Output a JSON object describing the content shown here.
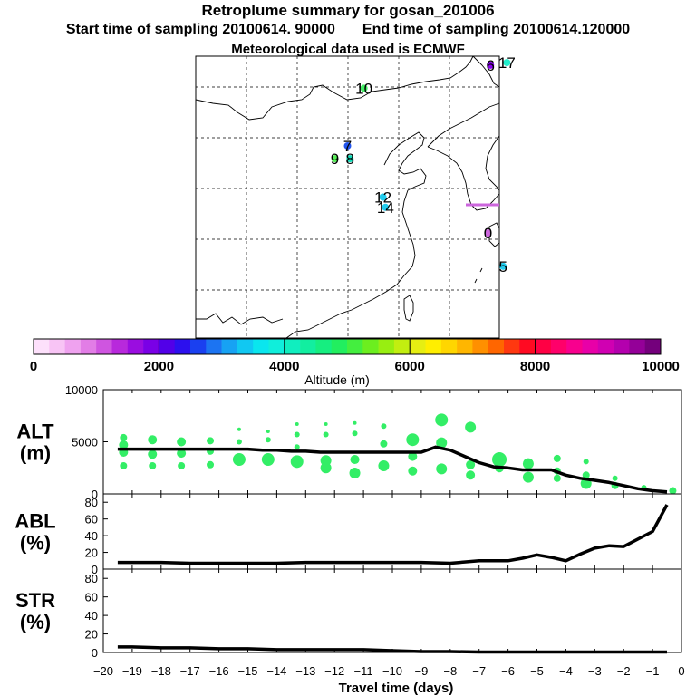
{
  "header": {
    "title": "Retroplume summary for gosan_201006",
    "start_label": "Start time of sampling 20100614. 90000",
    "end_label": "End time of sampling 20100614.120000",
    "met_label": "Meteorological data used is ECMWF"
  },
  "map": {
    "markers": [
      {
        "label": "17",
        "lon": 128.6,
        "lat": 47.5,
        "color": "#22eecc"
      },
      {
        "label": "6",
        "lon": 127.3,
        "lat": 47.3,
        "color": "#8800ee"
      },
      {
        "label": "10",
        "lon": 117.3,
        "lat": 45.5,
        "color": "#44ee66"
      },
      {
        "label": "7",
        "lon": 116.0,
        "lat": 41.0,
        "color": "#2255ee"
      },
      {
        "label": "9",
        "lon": 115.0,
        "lat": 40.0,
        "color": "#55ee55"
      },
      {
        "label": "8",
        "lon": 116.2,
        "lat": 40.0,
        "color": "#11ddbb"
      },
      {
        "label": "12",
        "lon": 118.8,
        "lat": 37.0,
        "color": "#22ccee"
      },
      {
        "label": "14",
        "lon": 119.0,
        "lat": 36.2,
        "color": "#22ccee"
      },
      {
        "label": "0",
        "lon": 127.1,
        "lat": 34.2,
        "color": "#cc66dd"
      },
      {
        "label": "5",
        "lon": 128.3,
        "lat": 31.6,
        "color": "#22ccee"
      }
    ]
  },
  "colorbar": {
    "title": "Altitude (m)",
    "tick_labels": [
      "0",
      "2000",
      "4000",
      "6000",
      "8000",
      "10000"
    ],
    "colors": [
      "#fde0fb",
      "#f8c4f5",
      "#efa2ef",
      "#e27de6",
      "#cf55e0",
      "#b829dc",
      "#9a0de0",
      "#7a00e6",
      "#5200e8",
      "#2c10ee",
      "#1a40f0",
      "#1c74f2",
      "#17a2f3",
      "#11c8f2",
      "#0ae6ee",
      "#10eedb",
      "#10eebf",
      "#12eea0",
      "#16ee80",
      "#22ee5f",
      "#44ee3f",
      "#6cee1f",
      "#98ee11",
      "#c2ee10",
      "#e6ee12",
      "#ffee00",
      "#ffd600",
      "#ffb600",
      "#ff9000",
      "#ff6600",
      "#ff3810",
      "#ff0a22",
      "#ff0044",
      "#ff006a",
      "#f8008e",
      "#e800a8",
      "#d000b2",
      "#b400ae",
      "#940098",
      "#74007c"
    ]
  },
  "chart_data": [
    {
      "type": "line",
      "name": "ALT",
      "ylabel": "ALT\n(m)",
      "ylim": [
        0,
        10000
      ],
      "yticks": [
        0,
        5000,
        10000
      ],
      "x": [
        -19.5,
        -19.0,
        -18.5,
        -18.0,
        -17.5,
        -17.0,
        -16.5,
        -16.0,
        -15.5,
        -15.0,
        -14.5,
        -14.0,
        -13.5,
        -13.0,
        -12.5,
        -12.0,
        -11.5,
        -11.0,
        -10.5,
        -10.0,
        -9.5,
        -9.0,
        -8.5,
        -8.0,
        -7.5,
        -7.0,
        -6.5,
        -6.0,
        -5.5,
        -5.0,
        -4.5,
        -4.0,
        -3.5,
        -3.0,
        -2.5,
        -2.0,
        -1.5,
        -1.0,
        -0.5
      ],
      "values": [
        4300,
        4300,
        4300,
        4300,
        4300,
        4300,
        4300,
        4300,
        4300,
        4300,
        4200,
        4200,
        4100,
        4100,
        4000,
        4000,
        4000,
        4000,
        4000,
        4000,
        4000,
        4000,
        4500,
        4200,
        3600,
        3000,
        2600,
        2500,
        2300,
        2300,
        2300,
        1800,
        1500,
        1300,
        1100,
        800,
        500,
        300,
        200
      ],
      "scatter": [
        {
          "x": -19.3,
          "y": 5400,
          "s": 3
        },
        {
          "x": -19.3,
          "y": 4700,
          "s": 4
        },
        {
          "x": -19.3,
          "y": 4000,
          "s": 4
        },
        {
          "x": -19.3,
          "y": 2700,
          "s": 3
        },
        {
          "x": -18.3,
          "y": 5200,
          "s": 4
        },
        {
          "x": -18.3,
          "y": 3800,
          "s": 4
        },
        {
          "x": -18.3,
          "y": 2700,
          "s": 3
        },
        {
          "x": -17.3,
          "y": 5000,
          "s": 4
        },
        {
          "x": -17.3,
          "y": 3900,
          "s": 4
        },
        {
          "x": -17.3,
          "y": 2700,
          "s": 3
        },
        {
          "x": -16.3,
          "y": 5100,
          "s": 3
        },
        {
          "x": -16.3,
          "y": 4100,
          "s": 3
        },
        {
          "x": -16.3,
          "y": 2800,
          "s": 3
        },
        {
          "x": -15.3,
          "y": 6200,
          "s": 1
        },
        {
          "x": -15.3,
          "y": 5000,
          "s": 2
        },
        {
          "x": -15.3,
          "y": 3300,
          "s": 6
        },
        {
          "x": -14.3,
          "y": 6000,
          "s": 1
        },
        {
          "x": -14.3,
          "y": 5200,
          "s": 2
        },
        {
          "x": -14.3,
          "y": 3300,
          "s": 6
        },
        {
          "x": -13.3,
          "y": 6700,
          "s": 1
        },
        {
          "x": -13.3,
          "y": 5700,
          "s": 2
        },
        {
          "x": -13.3,
          "y": 4500,
          "s": 2
        },
        {
          "x": -13.3,
          "y": 3100,
          "s": 6
        },
        {
          "x": -12.3,
          "y": 6700,
          "s": 1
        },
        {
          "x": -12.3,
          "y": 5700,
          "s": 2
        },
        {
          "x": -12.3,
          "y": 3200,
          "s": 5
        },
        {
          "x": -12.3,
          "y": 2500,
          "s": 5
        },
        {
          "x": -11.3,
          "y": 6800,
          "s": 1
        },
        {
          "x": -11.3,
          "y": 5800,
          "s": 2
        },
        {
          "x": -11.3,
          "y": 3300,
          "s": 4
        },
        {
          "x": -11.3,
          "y": 2000,
          "s": 5
        },
        {
          "x": -10.3,
          "y": 6500,
          "s": 2
        },
        {
          "x": -10.3,
          "y": 4800,
          "s": 3
        },
        {
          "x": -10.3,
          "y": 2700,
          "s": 5
        },
        {
          "x": -9.3,
          "y": 5200,
          "s": 6
        },
        {
          "x": -9.3,
          "y": 3600,
          "s": 4
        },
        {
          "x": -9.3,
          "y": 2200,
          "s": 4
        },
        {
          "x": -8.3,
          "y": 7100,
          "s": 6
        },
        {
          "x": -8.3,
          "y": 4900,
          "s": 5
        },
        {
          "x": -8.3,
          "y": 2400,
          "s": 5
        },
        {
          "x": -7.3,
          "y": 6400,
          "s": 5
        },
        {
          "x": -7.3,
          "y": 2800,
          "s": 4
        },
        {
          "x": -7.3,
          "y": 1800,
          "s": 4
        },
        {
          "x": -6.3,
          "y": 3300,
          "s": 7
        },
        {
          "x": -6.3,
          "y": 2500,
          "s": 4
        },
        {
          "x": -5.3,
          "y": 2900,
          "s": 5
        },
        {
          "x": -5.3,
          "y": 1600,
          "s": 5
        },
        {
          "x": -4.3,
          "y": 3400,
          "s": 3
        },
        {
          "x": -4.3,
          "y": 2200,
          "s": 3
        },
        {
          "x": -4.3,
          "y": 1500,
          "s": 3
        },
        {
          "x": -3.3,
          "y": 3100,
          "s": 2
        },
        {
          "x": -3.3,
          "y": 1800,
          "s": 3
        },
        {
          "x": -3.3,
          "y": 1000,
          "s": 5
        },
        {
          "x": -2.3,
          "y": 1500,
          "s": 2
        },
        {
          "x": -2.3,
          "y": 800,
          "s": 3
        },
        {
          "x": -1.3,
          "y": 600,
          "s": 2
        },
        {
          "x": -0.3,
          "y": 300,
          "s": 3
        }
      ]
    },
    {
      "type": "line",
      "name": "ABL",
      "ylabel": "ABL\n(%)",
      "ylim": [
        0,
        90
      ],
      "yticks": [
        0,
        20,
        40,
        60,
        80
      ],
      "x": [
        -19.5,
        -19.0,
        -18.0,
        -17.0,
        -16.0,
        -15.0,
        -14.0,
        -13.0,
        -12.0,
        -11.0,
        -10.0,
        -9.0,
        -8.0,
        -7.0,
        -6.0,
        -5.5,
        -5.0,
        -4.5,
        -4.0,
        -3.5,
        -3.0,
        -2.5,
        -2.0,
        -1.0,
        -0.5
      ],
      "values": [
        8,
        8,
        8,
        7,
        7,
        7,
        7,
        8,
        8,
        8,
        8,
        8,
        7,
        10,
        10,
        13,
        17,
        14,
        10,
        18,
        25,
        28,
        27,
        45,
        77
      ]
    },
    {
      "type": "line",
      "name": "STR",
      "ylabel": "STR\n(%)",
      "ylim": [
        0,
        90
      ],
      "yticks": [
        0,
        20,
        40,
        60,
        80
      ],
      "xlabel": "Travel time (days)",
      "xlim": [
        -20,
        0
      ],
      "xtick_labels": [
        "−20",
        "−19",
        "−18",
        "−17",
        "−16",
        "−15",
        "−14",
        "−13",
        "−12",
        "−11",
        "−10",
        "−9",
        "−8",
        "−7",
        "−6",
        "−5",
        "−4",
        "−3",
        "−2",
        "−1",
        "0"
      ],
      "x": [
        -19.5,
        -19.0,
        -18.0,
        -17.0,
        -16.0,
        -15.0,
        -14.0,
        -13.0,
        -12.0,
        -11.0,
        -10.0,
        -9.0,
        -8.0,
        -7.0,
        -6.0,
        -5.0,
        -4.0,
        -3.0,
        -2.0,
        -1.0,
        -0.5
      ],
      "values": [
        6,
        6,
        5,
        5,
        4,
        4,
        3,
        3,
        3,
        3,
        2,
        1,
        1,
        0.5,
        0.5,
        0.5,
        0.5,
        0.5,
        0.5,
        0.5,
        0.5
      ]
    }
  ]
}
